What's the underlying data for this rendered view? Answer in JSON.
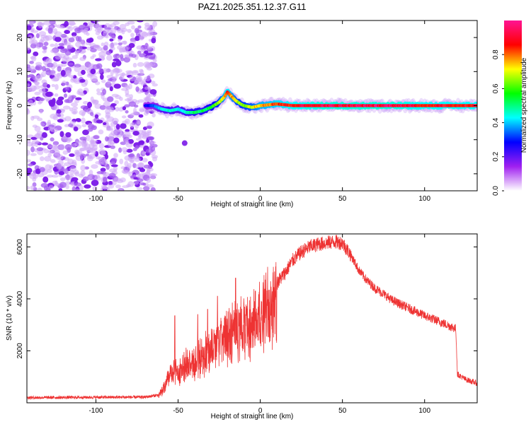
{
  "title": "PAZ1.2025.351.12.37.G11",
  "chart_data": [
    {
      "type": "heatmap",
      "xlabel": "Height of straight line (km)",
      "ylabel": "Frequency (Hz)",
      "xlim": [
        -142,
        132
      ],
      "ylim": [
        -25,
        25
      ],
      "xticks": [
        -100,
        -50,
        0,
        50,
        100
      ],
      "xtick_labels": [
        "-100",
        "-50",
        "0",
        "50",
        "100"
      ],
      "yticks": [
        -20,
        -10,
        0,
        10,
        20
      ],
      "ytick_labels": [
        "-20",
        "-10",
        "0",
        "10",
        "20"
      ],
      "noise_region_x": [
        -142,
        -68
      ],
      "track": {
        "x": [
          -70,
          -65,
          -60,
          -55,
          -50,
          -45,
          -40,
          -35,
          -30,
          -25,
          -22,
          -20,
          -18,
          -15,
          -12,
          -10,
          -5,
          0,
          10,
          20,
          40,
          60,
          80,
          100,
          120,
          132
        ],
        "y": [
          0,
          0,
          -1,
          -1.5,
          -1,
          -2,
          -2,
          -1.5,
          -0.5,
          1,
          2.5,
          4,
          3,
          1.5,
          0.5,
          0,
          -0.5,
          0,
          0.5,
          0,
          0,
          0,
          0,
          0,
          0,
          0
        ],
        "amplitude": [
          0.3,
          0.35,
          0.45,
          0.5,
          0.45,
          0.5,
          0.55,
          0.55,
          0.6,
          0.7,
          0.85,
          0.95,
          0.85,
          0.75,
          0.7,
          0.7,
          0.75,
          0.85,
          0.9,
          0.95,
          1.0,
          1.0,
          1.0,
          0.95,
          0.95,
          0.95
        ]
      },
      "isolated_blob": {
        "x": -46,
        "y": -11
      },
      "colorbar": {
        "label": "Normalized spectral amplitude",
        "range": [
          0,
          1
        ],
        "ticks": [
          0.0,
          0.2,
          0.4,
          0.6,
          0.8
        ],
        "tick_labels": [
          "0.0",
          "0.2",
          "0.4",
          "0.6",
          "0.8"
        ],
        "colors": [
          "#ffffff",
          "#a020f0",
          "#0000ff",
          "#00ffff",
          "#00ff00",
          "#ffff00",
          "#ff0000",
          "#ff1493"
        ]
      }
    },
    {
      "type": "line",
      "xlabel": "Height of straight line (km)",
      "ylabel": "SNR (10 * v/v)",
      "xlim": [
        -142,
        132
      ],
      "ylim": [
        0,
        6500
      ],
      "xticks": [
        -100,
        -50,
        0,
        50,
        100
      ],
      "xtick_labels": [
        "-100",
        "-50",
        "0",
        "50",
        "100"
      ],
      "yticks": [
        2000,
        4000,
        6000
      ],
      "ytick_labels": [
        "2000",
        "4000",
        "6000"
      ],
      "color": "#ee3333",
      "envelope": {
        "x": [
          -142,
          -70,
          -62,
          -58,
          -55,
          -50,
          -45,
          -40,
          -35,
          -30,
          -25,
          -20,
          -15,
          -10,
          -5,
          0,
          5,
          10,
          15,
          20,
          25,
          30,
          35,
          40,
          45,
          50,
          55,
          60,
          65,
          70,
          75,
          80,
          90,
          100,
          110,
          119,
          120,
          125,
          132
        ],
        "y": [
          200,
          220,
          300,
          800,
          1300,
          1500,
          1700,
          1800,
          2100,
          2400,
          2800,
          3000,
          3300,
          3400,
          3500,
          3800,
          4200,
          4600,
          5000,
          5500,
          5800,
          6000,
          6100,
          6150,
          6200,
          6150,
          5700,
          5100,
          4700,
          4400,
          4200,
          3950,
          3650,
          3350,
          3100,
          2850,
          1100,
          900,
          750
        ]
      },
      "spikes": [
        {
          "x": -52,
          "y": 3350
        },
        {
          "x": -38,
          "y": 3400
        },
        {
          "x": -32,
          "y": 3600
        },
        {
          "x": -26,
          "y": 4100
        },
        {
          "x": -15,
          "y": 4800
        },
        {
          "x": -3,
          "y": 4300
        }
      ]
    }
  ],
  "colors": {
    "trace": "#ee3333",
    "frame": "#000000",
    "background": "#ffffff"
  }
}
